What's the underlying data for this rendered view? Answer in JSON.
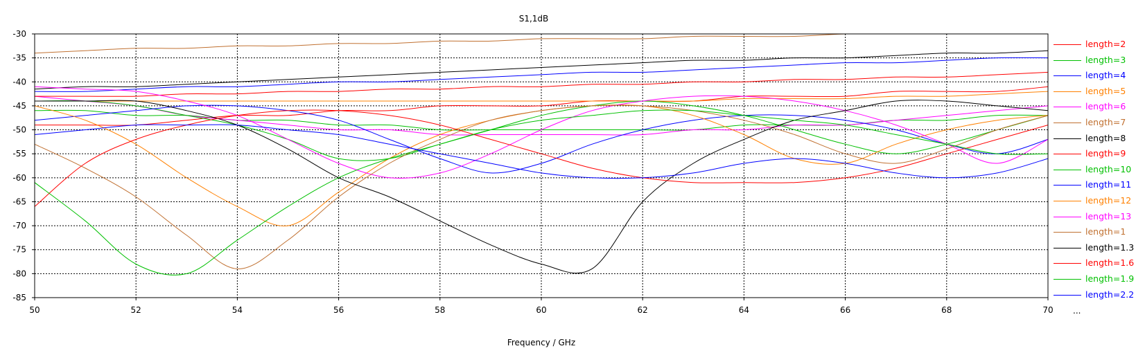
{
  "chart_data": {
    "type": "line",
    "title": "S1,1dB",
    "xlabel": "Frequency / GHz",
    "ylabel": "",
    "xlim": [
      50,
      70
    ],
    "ylim": [
      -85,
      -30
    ],
    "xticks": [
      "50",
      "52",
      "54",
      "56",
      "58",
      "60",
      "62",
      "64",
      "66",
      "68",
      "70"
    ],
    "yticks": [
      "-30",
      "-35",
      "-40",
      "-45",
      "-50",
      "-55",
      "-60",
      "-65",
      "-70",
      "-75",
      "-80",
      "-85"
    ],
    "grid": true,
    "legend_position": "right",
    "legend_more": "...",
    "x": [
      50,
      51,
      52,
      53,
      54,
      55,
      56,
      57,
      58,
      59,
      60,
      61,
      62,
      63,
      64,
      65,
      66,
      67,
      68,
      69,
      70
    ],
    "series": [
      {
        "name": "length=2",
        "color": "#ff0000",
        "values": [
          -49,
          -49,
          -49,
          -48,
          -47,
          -47,
          -46,
          -46,
          -45,
          -45,
          -45,
          -44,
          -44,
          -44,
          -43,
          -43,
          -43,
          -42,
          -42,
          -42,
          -41
        ]
      },
      {
        "name": "length=3",
        "color": "#00c000",
        "values": [
          -46,
          -46,
          -47,
          -47,
          -48,
          -48,
          -49,
          -49,
          -50,
          -50,
          -50,
          -50,
          -50,
          -50,
          -49,
          -49,
          -49,
          -48,
          -48,
          -47,
          -47
        ]
      },
      {
        "name": "length=4",
        "color": "#0000ff",
        "values": [
          -42,
          -42,
          -41.5,
          -41,
          -41,
          -40.5,
          -40,
          -40,
          -39.5,
          -39,
          -38.5,
          -38,
          -38,
          -37.5,
          -37,
          -36.5,
          -36,
          -36,
          -35.5,
          -35,
          -35
        ]
      },
      {
        "name": "length=5",
        "color": "#ff8000",
        "values": [
          -44,
          -44,
          -44,
          -44,
          -44,
          -44,
          -44,
          -44,
          -44,
          -44,
          -44,
          -44,
          -44,
          -44,
          -43.5,
          -43.5,
          -43.5,
          -43,
          -43,
          -42.5,
          -42
        ]
      },
      {
        "name": "length=6",
        "color": "#ff00ff",
        "values": [
          -43,
          -44,
          -45,
          -47,
          -48,
          -49,
          -50,
          -50,
          -51,
          -51,
          -51,
          -51,
          -51,
          -50,
          -50,
          -49,
          -49,
          -48,
          -47,
          -46,
          -45
        ]
      },
      {
        "name": "length=7",
        "color": "#c07030",
        "values": [
          -34,
          -33.5,
          -33,
          -33,
          -32.5,
          -32.5,
          -32,
          -32,
          -31.5,
          -31.5,
          -31,
          -31,
          -31,
          -30.5,
          -30.5,
          -30.5,
          -30,
          -30,
          -30,
          -30,
          -30
        ]
      },
      {
        "name": "length=8",
        "color": "#000000",
        "values": [
          -41.5,
          -41,
          -41,
          -40.5,
          -40,
          -39.5,
          -39,
          -38.5,
          -38,
          -37.5,
          -37,
          -36.5,
          -36,
          -35.5,
          -35.5,
          -35,
          -35,
          -34.5,
          -34,
          -34,
          -33.5
        ]
      },
      {
        "name": "length=9",
        "color": "#ff0000",
        "values": [
          -43,
          -43,
          -43,
          -42.5,
          -42.5,
          -42,
          -42,
          -41.5,
          -41.5,
          -41,
          -41,
          -40.5,
          -40.5,
          -40,
          -40,
          -39.5,
          -39.5,
          -39,
          -39,
          -38.5,
          -38
        ]
      },
      {
        "name": "length=10",
        "color": "#00c000",
        "values": [
          -44,
          -44,
          -45,
          -47,
          -49,
          -52,
          -56,
          -56,
          -53,
          -50,
          -47,
          -45,
          -44,
          -45,
          -47,
          -50,
          -53,
          -55,
          -53,
          -50,
          -47
        ]
      },
      {
        "name": "length=11",
        "color": "#0000ff",
        "values": [
          -48,
          -47,
          -46,
          -45,
          -45,
          -46,
          -48,
          -52,
          -56,
          -59,
          -57,
          -53,
          -50,
          -48,
          -47,
          -47,
          -48,
          -50,
          -53,
          -55,
          -52
        ]
      },
      {
        "name": "length=12",
        "color": "#ff8000",
        "values": [
          -45,
          -48,
          -53,
          -60,
          -66,
          -70,
          -63,
          -56,
          -51,
          -48,
          -46,
          -45,
          -45,
          -47,
          -51,
          -56,
          -57,
          -53,
          -50,
          -48,
          -47
        ]
      },
      {
        "name": "length=13",
        "color": "#ff00ff",
        "values": [
          -41,
          -41.5,
          -42,
          -44,
          -47,
          -52,
          -57,
          -60,
          -59,
          -55,
          -50,
          -46,
          -44,
          -43,
          -43,
          -44,
          -46,
          -49,
          -53,
          -57,
          -52
        ]
      },
      {
        "name": "length=1",
        "color": "#c07030",
        "values": [
          -53,
          -58,
          -64,
          -72,
          -79,
          -73,
          -64,
          -57,
          -52,
          -48,
          -46,
          -45,
          -45,
          -46,
          -48,
          -51,
          -55,
          -57,
          -54,
          -50,
          -47
        ]
      },
      {
        "name": "length=1.3",
        "color": "#000000",
        "values": [
          -44,
          -44,
          -44,
          -46,
          -49,
          -54,
          -60,
          -64,
          -69,
          -74,
          -78,
          -79,
          -65,
          -57,
          -52,
          -48,
          -46,
          -44,
          -44,
          -45,
          -46
        ]
      },
      {
        "name": "length=1.6",
        "color": "#ff0000",
        "values": [
          -66,
          -57,
          -52,
          -49,
          -47,
          -46,
          -46,
          -47,
          -49,
          -52,
          -55,
          -58,
          -60,
          -61,
          -61,
          -61,
          -60,
          -58,
          -55,
          -52,
          -49
        ]
      },
      {
        "name": "length=1.9",
        "color": "#00c000",
        "values": [
          -61,
          -69,
          -78,
          -80,
          -73,
          -66,
          -60,
          -56,
          -53,
          -50,
          -48,
          -47,
          -46,
          -46,
          -47,
          -48,
          -49,
          -51,
          -53,
          -55,
          -55
        ]
      },
      {
        "name": "length=2.2",
        "color": "#0000ff",
        "values": [
          -51,
          -50,
          -49,
          -49,
          -49,
          -50,
          -51,
          -53,
          -55,
          -57,
          -59,
          -60,
          -60,
          -59,
          -57,
          -56,
          -57,
          -59,
          -60,
          -59,
          -56
        ]
      }
    ]
  }
}
